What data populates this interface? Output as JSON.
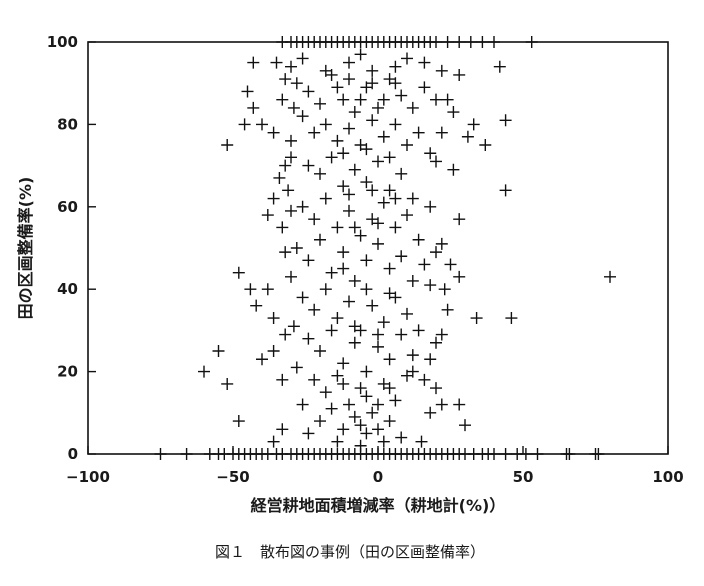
{
  "chart_data": {
    "type": "scatter",
    "title": "",
    "xlabel": "経営耕地面積増減率（耕地計(%)）",
    "ylabel": "田の区画整備率(%)",
    "xlim": [
      -100,
      100
    ],
    "ylim": [
      0,
      100
    ],
    "x_ticks": [
      "−100",
      "−50",
      "0",
      "50",
      "100"
    ],
    "y_ticks": [
      "0",
      "20",
      "40",
      "60",
      "80",
      "100"
    ],
    "grid": false,
    "legend": "none",
    "marker": "plus",
    "series": [
      {
        "points": [
          [
            -75,
            0
          ],
          [
            -66,
            0
          ],
          [
            -58,
            0
          ],
          [
            -55,
            0
          ],
          [
            -53,
            0
          ],
          [
            -50,
            0
          ],
          [
            -48,
            0
          ],
          [
            -46,
            0
          ],
          [
            -44,
            0
          ],
          [
            -42,
            0
          ],
          [
            -40,
            0
          ],
          [
            -38,
            0
          ],
          [
            -35,
            0
          ],
          [
            -33,
            0
          ],
          [
            -30,
            0
          ],
          [
            -28,
            0
          ],
          [
            -26,
            0
          ],
          [
            -24,
            0
          ],
          [
            -22,
            0
          ],
          [
            -20,
            0
          ],
          [
            -18,
            0
          ],
          [
            -16,
            0
          ],
          [
            -14,
            0
          ],
          [
            -12,
            0
          ],
          [
            -10,
            0
          ],
          [
            -8,
            0
          ],
          [
            -6,
            0
          ],
          [
            -4,
            0
          ],
          [
            -2,
            0
          ],
          [
            0,
            0
          ],
          [
            2,
            0
          ],
          [
            4,
            0
          ],
          [
            6,
            0
          ],
          [
            8,
            0
          ],
          [
            10,
            0
          ],
          [
            12,
            0
          ],
          [
            14,
            0
          ],
          [
            16,
            0
          ],
          [
            18,
            0
          ],
          [
            20,
            0
          ],
          [
            22,
            0
          ],
          [
            24,
            0
          ],
          [
            26,
            0
          ],
          [
            28,
            0
          ],
          [
            30,
            0
          ],
          [
            33,
            0
          ],
          [
            36,
            0
          ],
          [
            38,
            0
          ],
          [
            40,
            0
          ],
          [
            44,
            0
          ],
          [
            48,
            0
          ],
          [
            51,
            0
          ],
          [
            55,
            0
          ],
          [
            65,
            0
          ],
          [
            66,
            0
          ],
          [
            75,
            0
          ],
          [
            76,
            0
          ],
          [
            -33,
            100
          ],
          [
            -30,
            100
          ],
          [
            -28,
            100
          ],
          [
            -26,
            100
          ],
          [
            -24,
            100
          ],
          [
            -22,
            100
          ],
          [
            -20,
            100
          ],
          [
            -18,
            100
          ],
          [
            -16,
            100
          ],
          [
            -14,
            100
          ],
          [
            -12,
            100
          ],
          [
            -10,
            100
          ],
          [
            -8,
            100
          ],
          [
            -6,
            100
          ],
          [
            -4,
            100
          ],
          [
            -2,
            100
          ],
          [
            0,
            100
          ],
          [
            2,
            100
          ],
          [
            4,
            100
          ],
          [
            6,
            100
          ],
          [
            8,
            100
          ],
          [
            10,
            100
          ],
          [
            12,
            100
          ],
          [
            14,
            100
          ],
          [
            16,
            100
          ],
          [
            18,
            100
          ],
          [
            20,
            100
          ],
          [
            24,
            100
          ],
          [
            28,
            100
          ],
          [
            32,
            100
          ],
          [
            36,
            100
          ],
          [
            40,
            100
          ],
          [
            53,
            100
          ],
          [
            -43,
            95
          ],
          [
            -35,
            95
          ],
          [
            -32,
            91
          ],
          [
            -45,
            88
          ],
          [
            -43,
            84
          ],
          [
            -46,
            80
          ],
          [
            -40,
            80
          ],
          [
            -52,
            75
          ],
          [
            -36,
            78
          ],
          [
            -30,
            72
          ],
          [
            -34,
            67
          ],
          [
            -31,
            64
          ],
          [
            -36,
            62
          ],
          [
            -38,
            58
          ],
          [
            -33,
            55
          ],
          [
            -48,
            44
          ],
          [
            -44,
            40
          ],
          [
            -38,
            40
          ],
          [
            -42,
            36
          ],
          [
            -36,
            33
          ],
          [
            -32,
            29
          ],
          [
            -36,
            25
          ],
          [
            -40,
            23
          ],
          [
            -33,
            18
          ],
          [
            -60,
            20
          ],
          [
            -55,
            25
          ],
          [
            -52,
            17
          ],
          [
            -48,
            8
          ],
          [
            -36,
            3
          ],
          [
            -33,
            6
          ],
          [
            42,
            94
          ],
          [
            44,
            81
          ],
          [
            28,
            92
          ],
          [
            33,
            80
          ],
          [
            31,
            77
          ],
          [
            37,
            75
          ],
          [
            26,
            69
          ],
          [
            44,
            64
          ],
          [
            28,
            57
          ],
          [
            22,
            51
          ],
          [
            25,
            46
          ],
          [
            28,
            43
          ],
          [
            23,
            40
          ],
          [
            46,
            33
          ],
          [
            34,
            33
          ],
          [
            22,
            29
          ],
          [
            20,
            27
          ],
          [
            18,
            23
          ],
          [
            12,
            20
          ],
          [
            20,
            16
          ],
          [
            28,
            12
          ],
          [
            22,
            12
          ],
          [
            30,
            7
          ],
          [
            15,
            3
          ],
          [
            80,
            43
          ],
          [
            -28,
            90
          ],
          [
            -24,
            88
          ],
          [
            -20,
            85
          ],
          [
            -16,
            92
          ],
          [
            -12,
            86
          ],
          [
            -8,
            83
          ],
          [
            -4,
            89
          ],
          [
            0,
            84
          ],
          [
            4,
            91
          ],
          [
            8,
            87
          ],
          [
            12,
            84
          ],
          [
            16,
            89
          ],
          [
            20,
            86
          ],
          [
            -26,
            82
          ],
          [
            -22,
            78
          ],
          [
            -18,
            80
          ],
          [
            -14,
            76
          ],
          [
            -10,
            79
          ],
          [
            -6,
            75
          ],
          [
            -2,
            81
          ],
          [
            2,
            77
          ],
          [
            6,
            80
          ],
          [
            10,
            75
          ],
          [
            14,
            78
          ],
          [
            18,
            73
          ],
          [
            -24,
            70
          ],
          [
            -20,
            68
          ],
          [
            -16,
            72
          ],
          [
            -12,
            65
          ],
          [
            -8,
            69
          ],
          [
            -4,
            66
          ],
          [
            0,
            71
          ],
          [
            4,
            64
          ],
          [
            8,
            68
          ],
          [
            12,
            62
          ],
          [
            -26,
            60
          ],
          [
            -22,
            57
          ],
          [
            -18,
            62
          ],
          [
            -14,
            55
          ],
          [
            -10,
            59
          ],
          [
            -6,
            53
          ],
          [
            -2,
            57
          ],
          [
            2,
            61
          ],
          [
            6,
            55
          ],
          [
            10,
            58
          ],
          [
            14,
            52
          ],
          [
            -28,
            50
          ],
          [
            -24,
            47
          ],
          [
            -20,
            52
          ],
          [
            -16,
            44
          ],
          [
            -12,
            49
          ],
          [
            -8,
            42
          ],
          [
            -4,
            47
          ],
          [
            0,
            51
          ],
          [
            4,
            45
          ],
          [
            8,
            48
          ],
          [
            12,
            42
          ],
          [
            16,
            46
          ],
          [
            -26,
            38
          ],
          [
            -22,
            35
          ],
          [
            -18,
            40
          ],
          [
            -14,
            33
          ],
          [
            -10,
            37
          ],
          [
            -6,
            30
          ],
          [
            -2,
            36
          ],
          [
            2,
            32
          ],
          [
            6,
            38
          ],
          [
            10,
            34
          ],
          [
            14,
            30
          ],
          [
            -24,
            28
          ],
          [
            -20,
            25
          ],
          [
            -16,
            30
          ],
          [
            -12,
            22
          ],
          [
            -8,
            27
          ],
          [
            -4,
            20
          ],
          [
            0,
            26
          ],
          [
            4,
            23
          ],
          [
            8,
            29
          ],
          [
            12,
            24
          ],
          [
            -22,
            18
          ],
          [
            -18,
            15
          ],
          [
            -14,
            19
          ],
          [
            -10,
            12
          ],
          [
            -6,
            16
          ],
          [
            -2,
            10
          ],
          [
            2,
            17
          ],
          [
            6,
            13
          ],
          [
            10,
            19
          ],
          [
            -20,
            8
          ],
          [
            -16,
            11
          ],
          [
            -12,
            6
          ],
          [
            -8,
            9
          ],
          [
            -4,
            5
          ],
          [
            0,
            12
          ],
          [
            4,
            8
          ],
          [
            8,
            4
          ],
          [
            -14,
            3
          ],
          [
            -6,
            2
          ],
          [
            2,
            3
          ],
          [
            -30,
            94
          ],
          [
            -26,
            96
          ],
          [
            -10,
            95
          ],
          [
            -6,
            97
          ],
          [
            -2,
            93
          ],
          [
            6,
            94
          ],
          [
            10,
            96
          ],
          [
            16,
            95
          ],
          [
            22,
            93
          ],
          [
            -33,
            86
          ],
          [
            -29,
            84
          ],
          [
            24,
            86
          ],
          [
            26,
            83
          ],
          [
            -30,
            76
          ],
          [
            22,
            78
          ],
          [
            -32,
            70
          ],
          [
            20,
            71
          ],
          [
            -30,
            59
          ],
          [
            18,
            60
          ],
          [
            -32,
            49
          ],
          [
            20,
            49
          ],
          [
            -30,
            43
          ],
          [
            18,
            41
          ],
          [
            -29,
            31
          ],
          [
            24,
            35
          ],
          [
            -28,
            21
          ],
          [
            16,
            18
          ],
          [
            -26,
            12
          ],
          [
            18,
            10
          ],
          [
            -24,
            5
          ],
          [
            -18,
            93
          ],
          [
            -14,
            89
          ],
          [
            -10,
            91
          ],
          [
            -6,
            86
          ],
          [
            -2,
            90
          ],
          [
            2,
            86
          ],
          [
            6,
            90
          ],
          [
            -12,
            73
          ],
          [
            -4,
            74
          ],
          [
            4,
            72
          ],
          [
            -10,
            63
          ],
          [
            -2,
            64
          ],
          [
            6,
            62
          ],
          [
            -8,
            55
          ],
          [
            0,
            56
          ],
          [
            -12,
            45
          ],
          [
            -4,
            40
          ],
          [
            4,
            39
          ],
          [
            -8,
            31
          ],
          [
            0,
            29
          ],
          [
            -12,
            17
          ],
          [
            -4,
            14
          ],
          [
            4,
            16
          ],
          [
            -6,
            7
          ],
          [
            0,
            6
          ]
        ]
      }
    ],
    "caption": "図１　散布図の事例（田の区画整備率）"
  }
}
